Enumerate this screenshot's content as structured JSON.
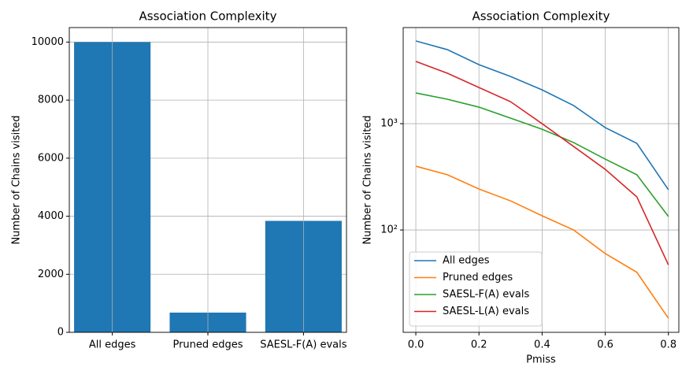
{
  "chart_data": [
    {
      "type": "bar",
      "title": "Association Complexity",
      "ylabel": "Number of Chains visited",
      "categories": [
        "All edges",
        "Pruned edges",
        "SAESL-F(A) evals"
      ],
      "values": [
        10000,
        680,
        3840
      ],
      "color": "#1f77b4",
      "ylim": [
        0,
        10500
      ],
      "yticks": [
        0,
        2000,
        4000,
        6000,
        8000,
        10000
      ],
      "grid": true
    },
    {
      "type": "line",
      "title": "Association Complexity",
      "ylabel": "Number of Chains visited",
      "xlabel": "Pmiss",
      "x": [
        0,
        0.1,
        0.2,
        0.3,
        0.4,
        0.5,
        0.6,
        0.7,
        0.8
      ],
      "series": [
        {
          "name": "All edges",
          "color": "#1f77b4",
          "values": [
            6000,
            4970,
            3590,
            2780,
            2080,
            1480,
            918,
            653,
            239
          ]
        },
        {
          "name": "Pruned edges",
          "color": "#ff7f0e",
          "values": [
            398,
            331,
            243,
            188,
            136,
            100,
            60,
            40,
            14.8
          ]
        },
        {
          "name": "SAESL-F(A) evals",
          "color": "#2ca02c",
          "values": [
            1945,
            1698,
            1431,
            1127,
            887,
            664,
            464,
            331,
            134
          ]
        },
        {
          "name": "SAESL-L(A) evals",
          "color": "#d62728",
          "values": [
            3850,
            2980,
            2190,
            1610,
            1000,
            610,
            372,
            205,
            47
          ]
        }
      ],
      "xlim": [
        -0.04,
        0.833
      ],
      "xticks": [
        {
          "value": 0,
          "label": "0.0"
        },
        0.2,
        0.4,
        0.6,
        0.8
      ],
      "ylim": [
        10.9,
        8020
      ],
      "yscale": "log",
      "yticks": [
        {
          "value": 100,
          "label": "10²"
        },
        {
          "value": 1000,
          "label": "10³"
        }
      ],
      "grid": true,
      "legend": "lower left"
    }
  ]
}
